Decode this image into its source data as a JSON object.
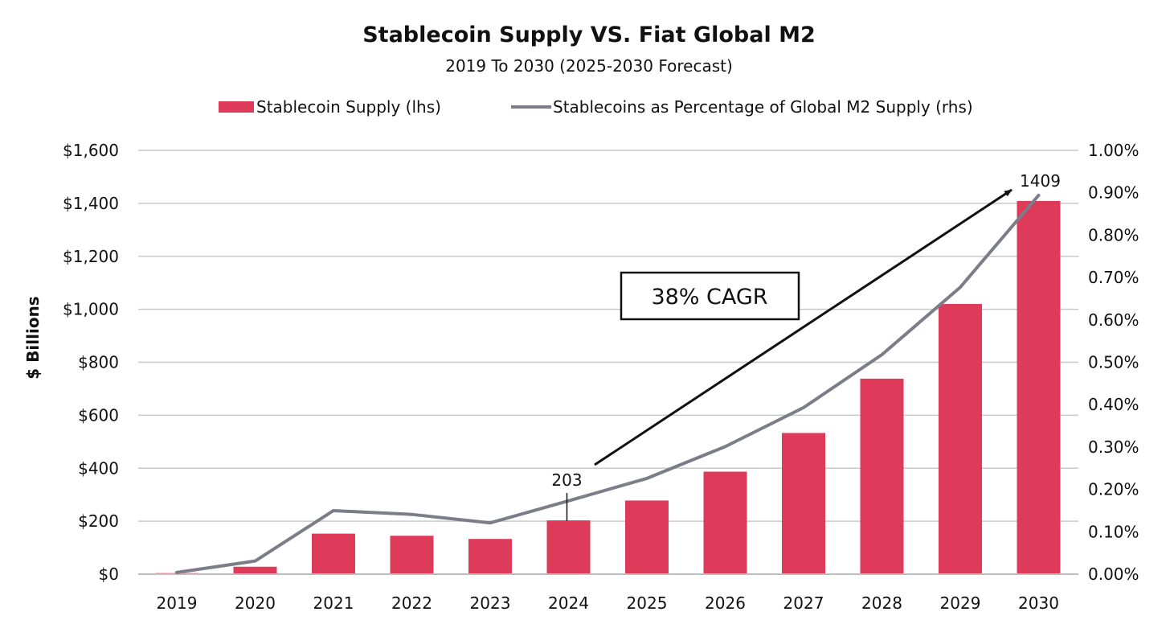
{
  "chart_data": {
    "type": "bar",
    "title": "Stablecoin Supply VS. Fiat Global M2",
    "subtitle": "2019 To 2030 (2025-2030 Forecast)",
    "ylabel": "$ Billions",
    "categories": [
      "2019",
      "2020",
      "2021",
      "2022",
      "2023",
      "2024",
      "2025",
      "2026",
      "2027",
      "2028",
      "2029",
      "2030"
    ],
    "series": [
      {
        "name": "Stablecoin Supply (lhs)",
        "kind": "bar",
        "axis": "left",
        "color": "#de3a5a",
        "values": [
          4,
          28,
          153,
          145,
          133,
          203,
          278,
          387,
          533,
          738,
          1020,
          1409
        ]
      },
      {
        "name": "Stablecoins as Percentage of Global M2 Supply (rhs)",
        "kind": "line",
        "axis": "right",
        "color": "#7b7d88",
        "values": [
          0.004,
          0.031,
          0.15,
          0.141,
          0.121,
          0.173,
          0.226,
          0.301,
          0.393,
          0.518,
          0.677,
          0.894
        ]
      }
    ],
    "ylim_left": [
      0,
      1600
    ],
    "yticks_left": [
      0,
      200,
      400,
      600,
      800,
      1000,
      1200,
      1400,
      1600
    ],
    "ytick_labels_left": [
      "$0",
      "$200",
      "$400",
      "$600",
      "$800",
      "$1,000",
      "$1,200",
      "$1,400",
      "$1,600"
    ],
    "ylim_right": [
      0,
      1.0
    ],
    "yticks_right": [
      0,
      0.1,
      0.2,
      0.3,
      0.4,
      0.5,
      0.6,
      0.7,
      0.8,
      0.9,
      1.0
    ],
    "ytick_labels_right": [
      "0.00%",
      "0.10%",
      "0.20%",
      "0.30%",
      "0.40%",
      "0.50%",
      "0.60%",
      "0.70%",
      "0.80%",
      "0.90%",
      "1.00%"
    ],
    "grid": true,
    "legend_position": "top-center",
    "annotations": [
      {
        "text": "203",
        "category": "2024"
      },
      {
        "text": "1409",
        "category": "2030"
      },
      {
        "text": "38% CAGR",
        "from_category": "2024",
        "to_category": "2030",
        "boxed": true
      }
    ]
  }
}
